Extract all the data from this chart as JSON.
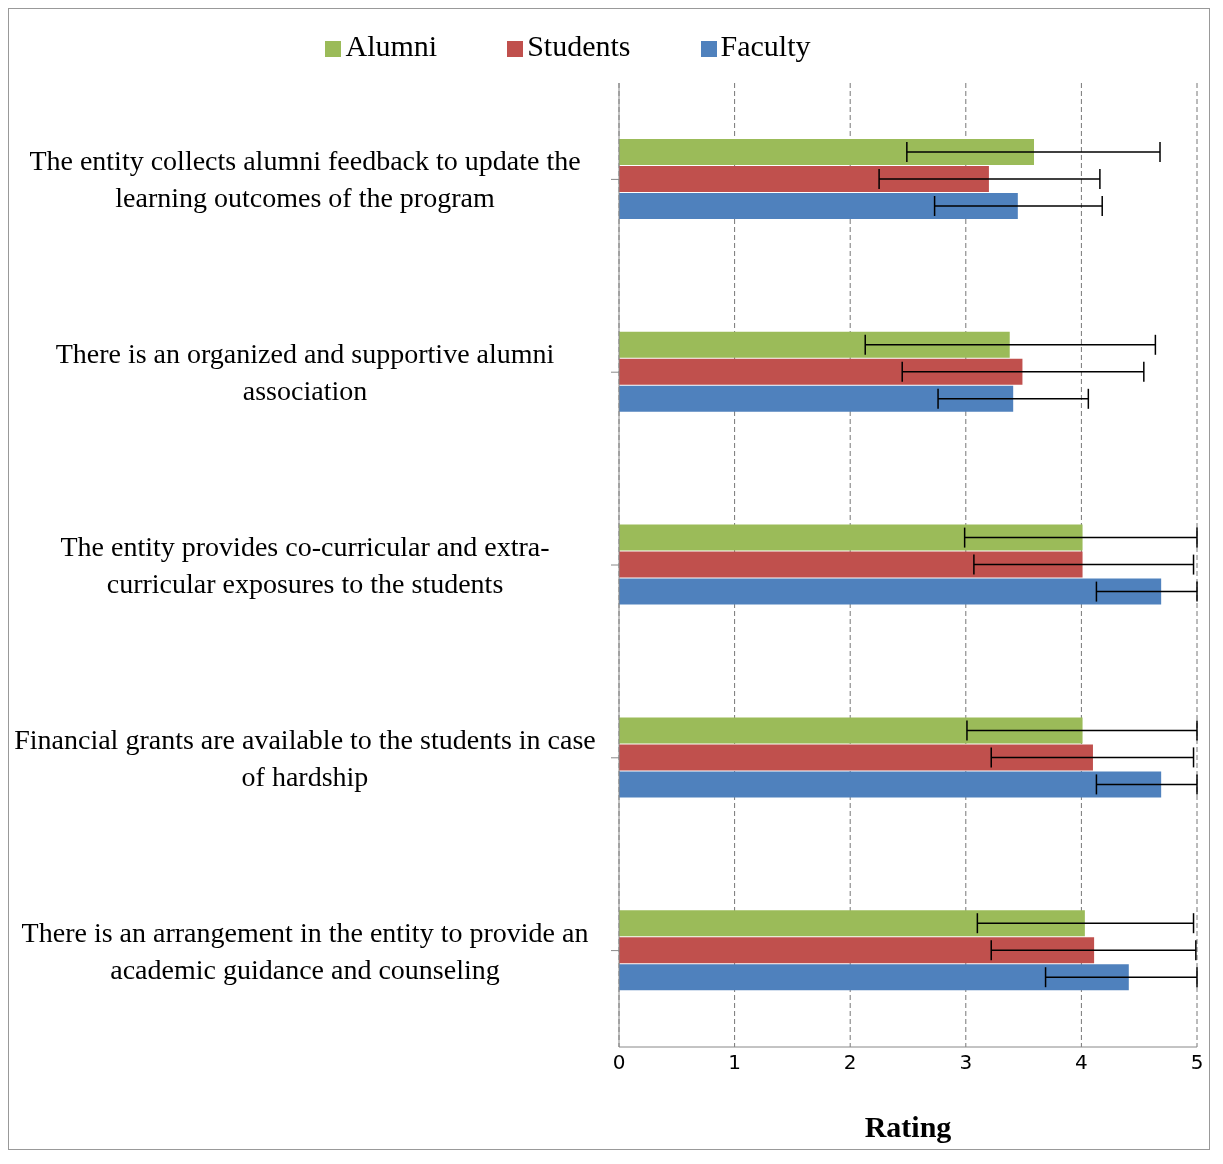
{
  "chart_data": {
    "type": "bar",
    "orientation": "horizontal",
    "xlabel": "Rating",
    "categories": [
      "The entity collects alumni feedback to update the learning outcomes of the program",
      "There is an organized and supportive alumni association",
      "The entity provides co-curricular and extra-curricular exposures to the students",
      "Financial grants are available to the students in case of hardship",
      "There is an arrangement in the entity to provide an academic guidance and counseling"
    ],
    "series": [
      {
        "name": "Alumni",
        "color": "#9bbb59",
        "values": [
          3.59,
          3.38,
          4.01,
          4.01,
          4.03
        ],
        "errors": [
          [
            2.49,
            4.68
          ],
          [
            2.13,
            4.64
          ],
          [
            2.99,
            5
          ],
          [
            3.01,
            5
          ],
          [
            3.1,
            4.97
          ]
        ]
      },
      {
        "name": "Students",
        "color": "#c0504d",
        "values": [
          3.2,
          3.49,
          4.01,
          4.1,
          4.11
        ],
        "errors": [
          [
            2.25,
            4.16
          ],
          [
            2.45,
            4.54
          ],
          [
            3.07,
            4.97
          ],
          [
            3.22,
            4.97
          ],
          [
            3.22,
            4.99
          ]
        ]
      },
      {
        "name": "Faculty",
        "color": "#4f81bd",
        "values": [
          3.45,
          3.41,
          4.69,
          4.69,
          4.41
        ],
        "errors": [
          [
            2.73,
            4.18
          ],
          [
            2.76,
            4.06
          ],
          [
            4.13,
            5
          ],
          [
            4.13,
            5
          ],
          [
            3.69,
            5
          ]
        ]
      }
    ],
    "xlim": [
      0,
      5
    ],
    "xticks": [
      0,
      1,
      2,
      3,
      4,
      5
    ],
    "grid": "x",
    "legend": "top"
  }
}
